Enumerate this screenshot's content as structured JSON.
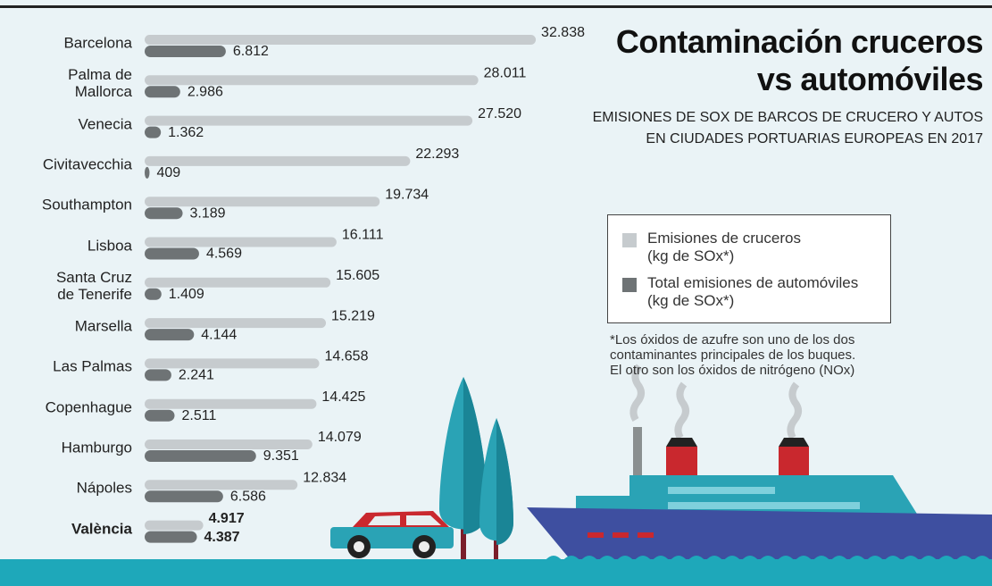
{
  "title": [
    "Contaminación cruceros",
    "vs automóviles"
  ],
  "subtitle": [
    "EMISIONES DE SOX  DE BARCOS DE CRUCERO Y AUTOS",
    "EN CIUDADES PORTUARIAS EUROPEAS EN 2017"
  ],
  "footnote": [
    "*Los óxidos de azufre son uno  de los dos",
    "contaminantes principales de los buques.",
    "El otro son los óxidos de nitrógeno (NOx)"
  ],
  "chart_data": {
    "type": "bar",
    "orientation": "horizontal",
    "categories": [
      "Barcelona",
      "Palma de\nMallorca",
      "Venecia",
      "Civitavecchia",
      "Southampton",
      "Lisboa",
      "Santa Cruz\nde Tenerife",
      "Marsella",
      "Las Palmas",
      "Copenhague",
      "Hamburgo",
      "Nápoles",
      "València"
    ],
    "series": [
      {
        "name": "Emisiones de cruceros",
        "unit": "(kg de SOx*)",
        "color": "#c6cbce",
        "values": [
          32838,
          28011,
          27520,
          22293,
          19734,
          16111,
          15605,
          15219,
          14658,
          14425,
          14079,
          12834,
          4917
        ],
        "value_labels": [
          "32.838",
          "28.011",
          "27.520",
          "22.293",
          "19.734",
          "16.111",
          "15.605",
          "15.219",
          "14.658",
          "14.425",
          "14.079",
          "12.834",
          "4.917"
        ]
      },
      {
        "name": "Total emisiones de automóviles",
        "unit": "(kg de SOx*)",
        "color": "#6e7375",
        "values": [
          6812,
          2986,
          1362,
          409,
          3189,
          4569,
          1409,
          4144,
          2241,
          2511,
          9351,
          6586,
          4387
        ],
        "value_labels": [
          "6.812",
          "2.986",
          "1.362",
          "409",
          "3.189",
          "4.569",
          "1.409",
          "4.144",
          "2.241",
          "2.511",
          "9.351",
          "6.586",
          "4.387"
        ]
      }
    ]
  }
}
